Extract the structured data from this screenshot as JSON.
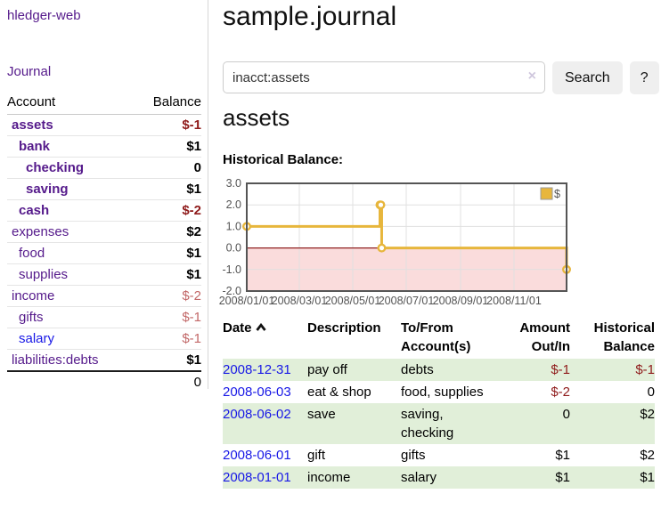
{
  "app": {
    "title": "hledger-web"
  },
  "sidebar": {
    "journal_link": "Journal",
    "accounts_table": {
      "headers": {
        "account": "Account",
        "balance": "Balance"
      },
      "rows": [
        {
          "name": "assets",
          "depth": 1,
          "bold": true,
          "link_color": "purple",
          "balance": "$-1",
          "balance_style": "neg-strong"
        },
        {
          "name": "bank",
          "depth": 2,
          "bold": true,
          "link_color": "purple",
          "balance": "$1",
          "balance_style": "pos"
        },
        {
          "name": "checking",
          "depth": 3,
          "bold": true,
          "link_color": "purple",
          "balance": "0",
          "balance_style": "pos"
        },
        {
          "name": "saving",
          "depth": 3,
          "bold": true,
          "link_color": "purple",
          "balance": "$1",
          "balance_style": "pos"
        },
        {
          "name": "cash",
          "depth": 2,
          "bold": true,
          "link_color": "purple",
          "balance": "$-2",
          "balance_style": "neg-strong"
        },
        {
          "name": "expenses",
          "depth": 1,
          "bold": false,
          "link_color": "purple",
          "balance": "$2",
          "balance_style": "pos"
        },
        {
          "name": "food",
          "depth": 2,
          "bold": false,
          "link_color": "purple",
          "balance": "$1",
          "balance_style": "pos"
        },
        {
          "name": "supplies",
          "depth": 2,
          "bold": false,
          "link_color": "purple",
          "balance": "$1",
          "balance_style": "pos"
        },
        {
          "name": "income",
          "depth": 1,
          "bold": false,
          "link_color": "purple",
          "balance": "$-2",
          "balance_style": "neg-muted"
        },
        {
          "name": "gifts",
          "depth": 2,
          "bold": false,
          "link_color": "purple",
          "balance": "$-1",
          "balance_style": "neg-muted"
        },
        {
          "name": "salary",
          "depth": 2,
          "bold": false,
          "link_color": "blue",
          "balance": "$-1",
          "balance_style": "neg-muted"
        },
        {
          "name": "liabilities:debts",
          "depth": 1,
          "bold": false,
          "link_color": "purple",
          "balance": "$1",
          "balance_style": "pos"
        }
      ],
      "total": "0"
    }
  },
  "main": {
    "title": "sample.journal",
    "search": {
      "value": "inacct:assets",
      "clear_icon": "×",
      "search_button": "Search",
      "help_button": "?"
    },
    "account_heading": "assets",
    "chart_label": "Historical Balance:"
  },
  "chart_data": {
    "type": "line",
    "step": true,
    "title": "Historical Balance:",
    "series": [
      {
        "name": "$",
        "color": "#E7B63C",
        "points": [
          [
            "2008-01-01",
            1
          ],
          [
            "2008-06-01",
            2
          ],
          [
            "2008-06-02",
            2
          ],
          [
            "2008-06-03",
            0
          ],
          [
            "2008-12-31",
            -1
          ]
        ]
      }
    ],
    "x_range": [
      "2008-01-01",
      "2008-12-31"
    ],
    "x_ticks": [
      "2008/01/01",
      "2008/03/01",
      "2008/05/01",
      "2008/07/01",
      "2008/09/01",
      "2008/11/01"
    ],
    "y_ticks": [
      3.0,
      2.0,
      1.0,
      0.0,
      -1.0,
      -2.0
    ],
    "ylim": [
      -2,
      3
    ],
    "grid": true,
    "legend_position": "top-right",
    "legend_label": "$",
    "negative_region_color": "#FADCDC",
    "zero_line_color": "#8F2020",
    "grid_color": "#e0e0e0",
    "border_color": "#555555"
  },
  "register_table": {
    "headers": {
      "date": "Date",
      "description": "Description",
      "accounts": "To/From Account(s)",
      "amount": "Amount Out/In",
      "balance": "Historical Balance"
    },
    "sort_icon": "chevron-up",
    "rows": [
      {
        "date": "2008-12-31",
        "description": "pay off",
        "accounts": "debts",
        "amount": "$-1",
        "amount_negative": true,
        "balance": "$-1",
        "balance_negative": true
      },
      {
        "date": "2008-06-03",
        "description": "eat & shop",
        "accounts": "food, supplies",
        "amount": "$-2",
        "amount_negative": true,
        "balance": "0",
        "balance_negative": false
      },
      {
        "date": "2008-06-02",
        "description": "save",
        "accounts": "saving, checking",
        "amount": "0",
        "amount_negative": false,
        "balance": "$2",
        "balance_negative": false
      },
      {
        "date": "2008-06-01",
        "description": "gift",
        "accounts": "gifts",
        "amount": "$1",
        "amount_negative": false,
        "balance": "$2",
        "balance_negative": false
      },
      {
        "date": "2008-01-01",
        "description": "income",
        "accounts": "salary",
        "amount": "$1",
        "amount_negative": false,
        "balance": "$1",
        "balance_negative": false
      }
    ]
  },
  "colors": {
    "link_purple": "#551A8B",
    "link_blue": "#1818E6",
    "negative_strong": "#8F1B1B",
    "negative_muted": "#C26868",
    "row_stripe_green": "#E1EFD9",
    "chart_line_gold": "#E7B63C",
    "button_background": "#EFEFEF"
  }
}
